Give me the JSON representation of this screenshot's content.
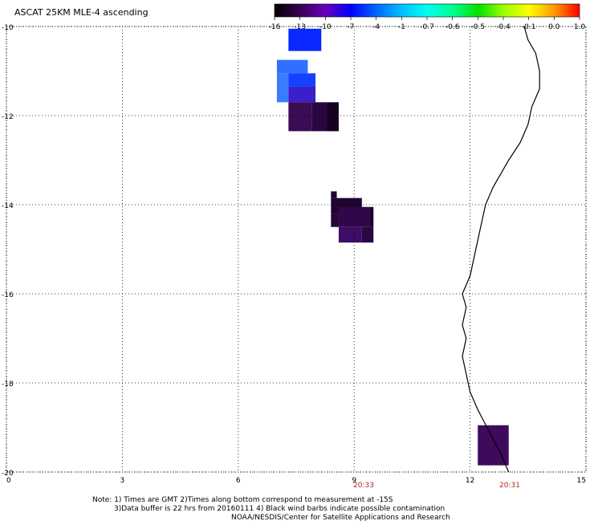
{
  "title": "ASCAT 25KM MLE-4 ascending",
  "colorbar": {
    "labels": [
      "-16",
      "-13",
      "-10",
      "-7",
      "-4",
      "-1",
      "-0.7",
      "-0.6",
      "-0.5",
      "-0.4",
      "-0.1",
      "0.0",
      "1.0"
    ],
    "colors": [
      "#000000",
      "#3a0050",
      "#6a00b8",
      "#0000ff",
      "#0066ff",
      "#00bfff",
      "#00ffee",
      "#00ff90",
      "#00e000",
      "#99ff00",
      "#ffff00",
      "#ff9900",
      "#ff0000"
    ]
  },
  "axes": {
    "lat_labels": [
      "-10",
      "-12",
      "-14",
      "-16",
      "-18",
      "-20"
    ],
    "lon_labels": [
      "0",
      "3",
      "6",
      "9",
      "12",
      "15"
    ],
    "lat_range": [
      -10,
      -20
    ],
    "lon_range": [
      0,
      15
    ],
    "grid": "dotted"
  },
  "times": [
    "20:33",
    "20:31"
  ],
  "notes": {
    "line1": "Note: 1) Times are GMT 2)Times along bottom correspond to measurement at -15S",
    "line2": "3)Data buffer is 22 hrs from 20160111 4) Black wind barbs indicate possible contamination",
    "line3": "NOAA/NESDIS/Center for Satellite Applications and Research"
  },
  "swath_cells": [
    {
      "lon0": 7.3,
      "lon1": 8.15,
      "lat0": -10.05,
      "lat1": -10.55,
      "color": "#0a28ff"
    },
    {
      "lon0": 7.0,
      "lon1": 7.8,
      "lat0": -10.75,
      "lat1": -11.05,
      "color": "#2f6fff"
    },
    {
      "lon0": 7.0,
      "lon1": 7.3,
      "lat0": -11.05,
      "lat1": -11.7,
      "color": "#3a7cff"
    },
    {
      "lon0": 7.3,
      "lon1": 8.0,
      "lat0": -11.05,
      "lat1": -11.35,
      "color": "#1440ff"
    },
    {
      "lon0": 7.3,
      "lon1": 8.0,
      "lat0": -11.35,
      "lat1": -11.7,
      "color": "#3b1fc8"
    },
    {
      "lon0": 7.3,
      "lon1": 7.9,
      "lat0": -11.7,
      "lat1": -12.35,
      "color": "#3c0b55"
    },
    {
      "lon0": 7.9,
      "lon1": 8.3,
      "lat0": -11.7,
      "lat1": -12.35,
      "color": "#2a0640"
    },
    {
      "lon0": 8.3,
      "lon1": 8.6,
      "lat0": -11.7,
      "lat1": -12.35,
      "color": "#16021f"
    },
    {
      "lon0": 8.4,
      "lon1": 9.2,
      "lat0": -13.85,
      "lat1": -14.2,
      "color": "#200430"
    },
    {
      "lon0": 8.4,
      "lon1": 8.55,
      "lat0": -13.7,
      "lat1": -13.85,
      "color": "#200430"
    },
    {
      "lon0": 8.4,
      "lon1": 8.6,
      "lat0": -14.2,
      "lat1": -14.5,
      "color": "#26063a"
    },
    {
      "lon0": 8.6,
      "lon1": 9.4,
      "lat0": -14.05,
      "lat1": -14.5,
      "color": "#30084a"
    },
    {
      "lon0": 8.6,
      "lon1": 9.2,
      "lat0": -14.5,
      "lat1": -14.85,
      "color": "#3f0c68"
    },
    {
      "lon0": 9.2,
      "lon1": 9.5,
      "lat0": -14.5,
      "lat1": -14.85,
      "color": "#2c0745"
    },
    {
      "lon0": 9.4,
      "lon1": 9.5,
      "lat0": -14.05,
      "lat1": -14.5,
      "color": "#1d0430"
    },
    {
      "lon0": 12.2,
      "lon1": 13.0,
      "lat0": -18.95,
      "lat1": -19.85,
      "color": "#3e0a5c"
    }
  ],
  "coastline": [
    [
      13.4,
      -10.0
    ],
    [
      13.5,
      -10.3
    ],
    [
      13.7,
      -10.6
    ],
    [
      13.8,
      -11.0
    ],
    [
      13.8,
      -11.4
    ],
    [
      13.6,
      -11.8
    ],
    [
      13.5,
      -12.2
    ],
    [
      13.3,
      -12.6
    ],
    [
      13.0,
      -13.0
    ],
    [
      12.8,
      -13.3
    ],
    [
      12.6,
      -13.6
    ],
    [
      12.4,
      -14.0
    ],
    [
      12.3,
      -14.4
    ],
    [
      12.2,
      -14.8
    ],
    [
      12.1,
      -15.2
    ],
    [
      12.0,
      -15.6
    ],
    [
      11.8,
      -16.0
    ],
    [
      11.9,
      -16.3
    ],
    [
      11.8,
      -16.7
    ],
    [
      11.9,
      -17.0
    ],
    [
      11.8,
      -17.4
    ],
    [
      11.9,
      -17.8
    ],
    [
      12.0,
      -18.2
    ],
    [
      12.2,
      -18.6
    ],
    [
      12.5,
      -19.1
    ],
    [
      12.8,
      -19.6
    ],
    [
      13.0,
      -20.0
    ]
  ]
}
